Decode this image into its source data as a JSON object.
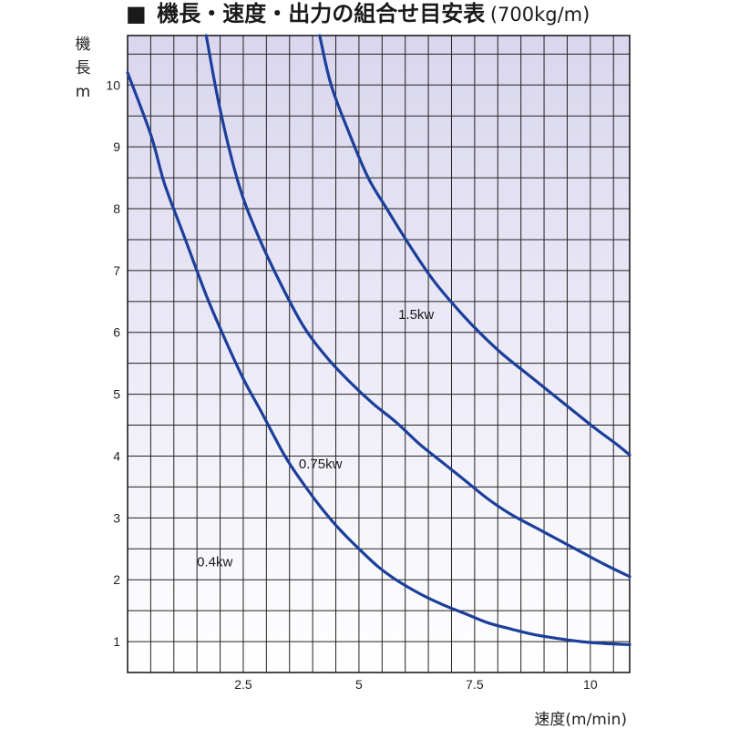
{
  "chart_data": {
    "type": "line",
    "title_mark": "■",
    "title_main": "機長・速度・出力の組合せ目安表",
    "title_sub": "(700kg/m)",
    "ylabel_chars": [
      "機",
      "長"
    ],
    "ylabel_unit": "m",
    "xlabel": "速度(m/min)",
    "xlim": [
      0,
      10.85
    ],
    "ylim": [
      0.5,
      10.8
    ],
    "x_ticks": [
      2.5,
      5,
      7.5,
      10
    ],
    "x_tick_labels": [
      "2.5",
      "5",
      "7.5",
      "10"
    ],
    "y_ticks": [
      1,
      2,
      3,
      4,
      5,
      6,
      7,
      8,
      9,
      10
    ],
    "y_tick_labels": [
      "1",
      "2",
      "3",
      "4",
      "5",
      "6",
      "7",
      "8",
      "9",
      "10"
    ],
    "grid": true,
    "line_color": "#1b3f9b",
    "background_top_color": "#d9d6ee",
    "background_bottom_color": "#ffffff",
    "series": [
      {
        "name": "0.4kw",
        "x": [
          0.0,
          0.5,
          0.8,
          1.2,
          1.7,
          2.1,
          2.5,
          2.9,
          3.4,
          3.8,
          4.2,
          4.6,
          5.0,
          5.4,
          5.8,
          6.3,
          6.8,
          7.3,
          7.8,
          8.3,
          8.8,
          9.3,
          9.8,
          10.3,
          10.85
        ],
        "y": [
          10.2,
          9.2,
          8.4,
          7.6,
          6.6,
          5.9,
          5.25,
          4.7,
          4.0,
          3.55,
          3.15,
          2.8,
          2.5,
          2.22,
          2.0,
          1.78,
          1.6,
          1.45,
          1.3,
          1.2,
          1.11,
          1.05,
          1.0,
          0.97,
          0.95
        ]
      },
      {
        "name": "0.75kw",
        "x": [
          1.7,
          2.0,
          2.4,
          2.8,
          3.3,
          3.8,
          4.3,
          4.8,
          5.3,
          5.8,
          6.3,
          6.8,
          7.3,
          7.8,
          8.3,
          8.8,
          9.3,
          9.8,
          10.3,
          10.85
        ],
        "y": [
          10.8,
          9.6,
          8.4,
          7.6,
          6.8,
          6.1,
          5.6,
          5.2,
          4.85,
          4.55,
          4.2,
          3.9,
          3.6,
          3.3,
          3.05,
          2.85,
          2.65,
          2.45,
          2.25,
          2.05
        ]
      },
      {
        "name": "1.5kw",
        "x": [
          4.15,
          4.4,
          4.8,
          5.2,
          5.6,
          6.1,
          6.6,
          7.1,
          7.6,
          8.1,
          8.6,
          9.1,
          9.6,
          10.1,
          10.55,
          10.85
        ],
        "y": [
          10.8,
          10.0,
          9.2,
          8.5,
          8.0,
          7.4,
          6.85,
          6.4,
          6.0,
          5.65,
          5.35,
          5.05,
          4.75,
          4.45,
          4.2,
          4.02
        ]
      }
    ],
    "annotations": [
      {
        "text": "0.4kw",
        "x": 1.5,
        "y": 2.22
      },
      {
        "text": "0.75kw",
        "x": 3.7,
        "y": 3.8
      },
      {
        "text": "1.5kw",
        "x": 5.85,
        "y": 6.22
      }
    ]
  }
}
